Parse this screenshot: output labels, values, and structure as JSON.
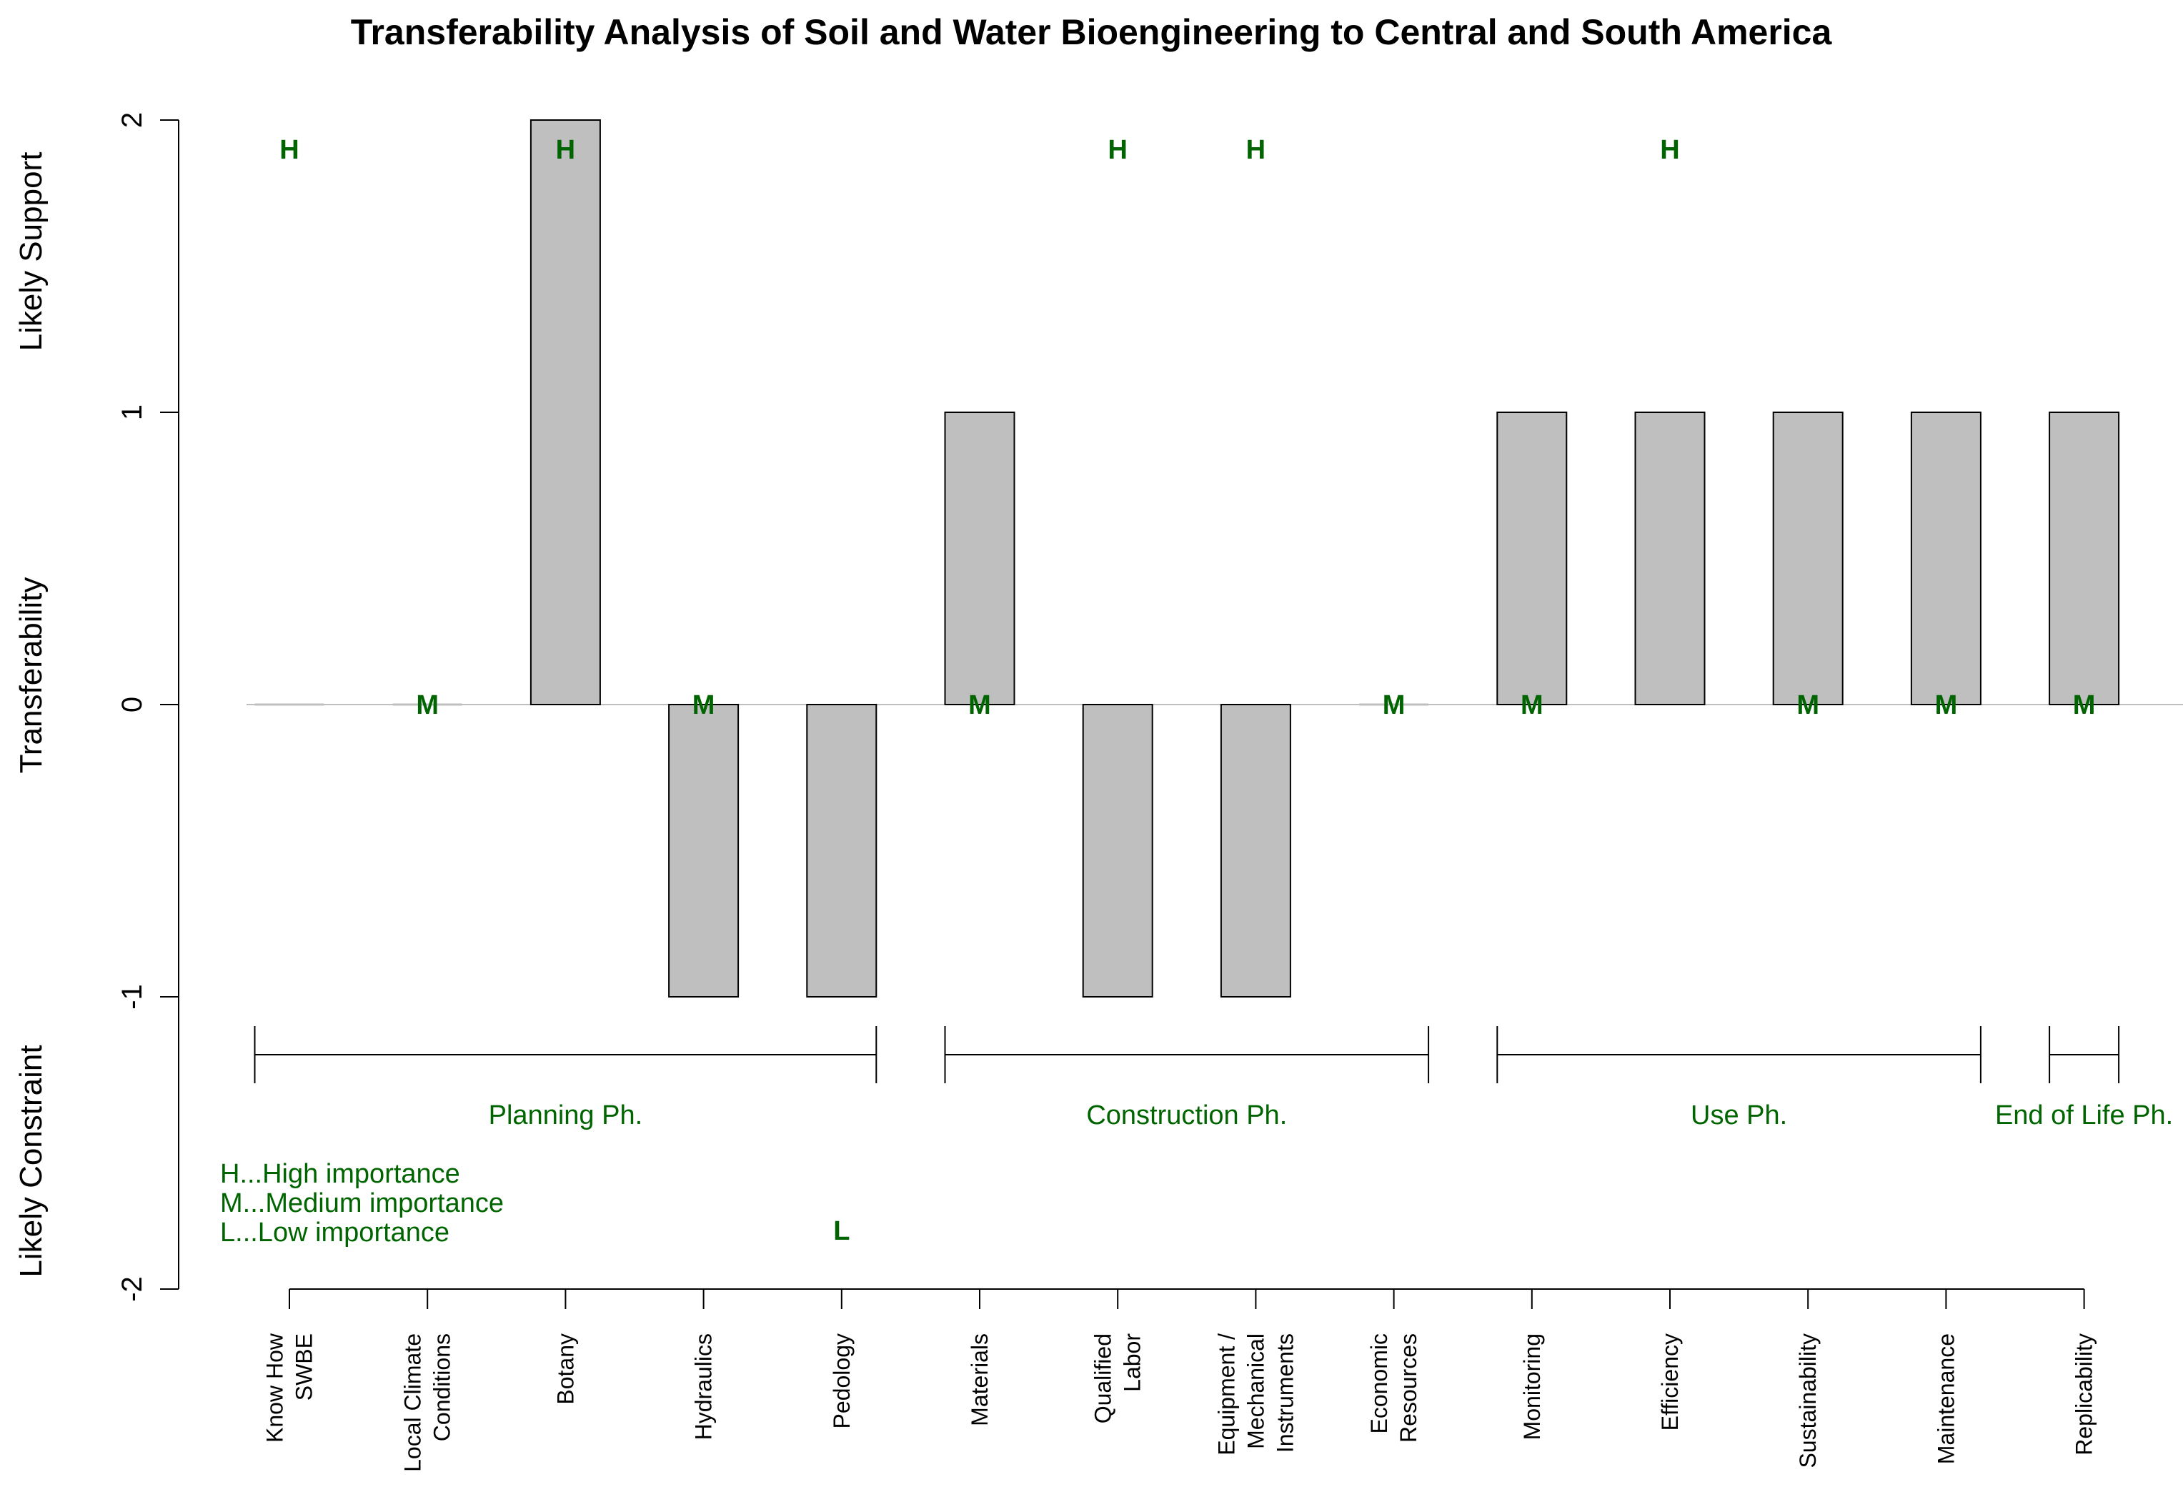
{
  "chart_data": {
    "type": "bar",
    "title": "Transferability Analysis of Soil and Water Bioengineering to Central and South America",
    "ylabel_top": "Likely Support",
    "ylabel_mid": "Transferability",
    "ylabel_bottom": "Likely Constraint",
    "ylim": [
      -2,
      2
    ],
    "yticks": [
      "2",
      "1",
      "0",
      "-1",
      "-2"
    ],
    "categories": [
      [
        "Know How",
        "SWBE"
      ],
      [
        "Local Climate",
        "Conditions"
      ],
      [
        "Botany"
      ],
      [
        "Hydraulics"
      ],
      [
        "Pedology"
      ],
      [
        "Materials"
      ],
      [
        "Qualified",
        "Labor"
      ],
      [
        "Equipment /",
        "Mechanical",
        "Instruments"
      ],
      [
        "Economic",
        "Resources"
      ],
      [
        "Monitoring"
      ],
      [
        "Efficiency"
      ],
      [
        "Sustainability"
      ],
      [
        "Maintenance"
      ],
      [
        "Replicability"
      ]
    ],
    "values": [
      0,
      0,
      2,
      -1,
      -1,
      1,
      -1,
      -1,
      0,
      1,
      1,
      1,
      1,
      1
    ],
    "importance": [
      "H",
      "M",
      "H",
      "M",
      "L",
      "M",
      "H",
      "H",
      "M",
      "M",
      "H",
      "M",
      "M",
      "M"
    ],
    "phases": [
      {
        "label": "Planning Ph.",
        "from": 0,
        "to": 4
      },
      {
        "label": "Construction Ph.",
        "from": 5,
        "to": 8
      },
      {
        "label": "Use Ph.",
        "from": 9,
        "to": 12
      },
      {
        "label": "End of Life Ph.",
        "from": 13,
        "to": 13
      }
    ],
    "legend": [
      "H...High importance",
      "M...Medium importance",
      "L...Low importance"
    ],
    "colors": {
      "bar_fill": "#bfbfbf",
      "bar_stroke": "#000000",
      "annotation": "#006400",
      "zero_line": "#bfbfbf"
    }
  }
}
